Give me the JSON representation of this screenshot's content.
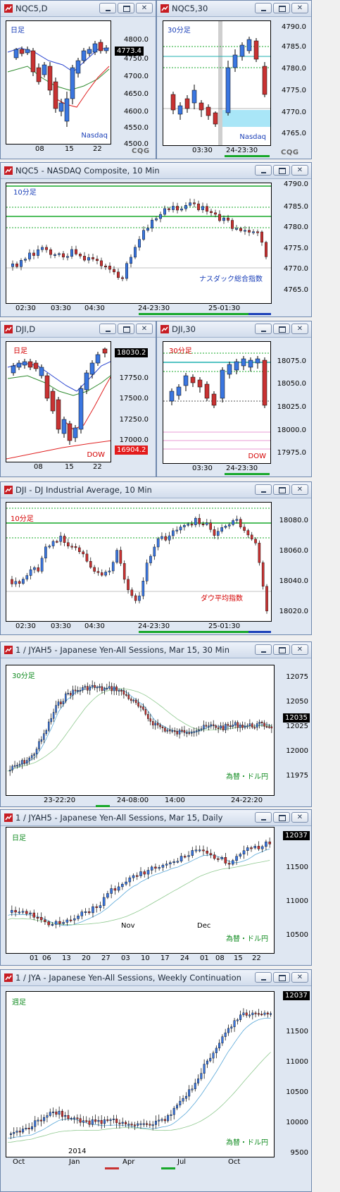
{
  "colors": {
    "up": "#3a76e0",
    "down": "#c83232",
    "green": "#17a82a",
    "ma_blue": "#2a45d0",
    "ma_red": "#e02020",
    "ma_green": "#2e8b2e",
    "cyan": "#1fb0b0"
  },
  "brand": "CQG",
  "windows": [
    {
      "id": "w1",
      "title": "NQC5,D",
      "label": "日足",
      "label_color": "j",
      "sub": "Nasdaq",
      "price_tag": "4773.4",
      "yticks": [
        "4800.0",
        "4750.0",
        "4700.0",
        "4650.0",
        "4600.0",
        "4550.0",
        "4500.0"
      ],
      "xticks": [
        "08",
        "15",
        "22"
      ]
    },
    {
      "id": "w2",
      "title": "NQC5,30",
      "label": "30分足",
      "label_color": "j",
      "sub": "Nasdaq",
      "yticks": [
        "4790.0",
        "4785.0",
        "4780.0",
        "4775.0",
        "4770.0",
        "4765.0"
      ],
      "xticks": [
        "03:30",
        "24-23:30"
      ]
    },
    {
      "id": "w3",
      "title": "NQC5 - NASDAQ Composite, 10 Min",
      "label": "10分足",
      "label_color": "j",
      "sub": "ナスダック総合指数",
      "yticks": [
        "4790.0",
        "4785.0",
        "4780.0",
        "4775.0",
        "4770.0",
        "4765.0"
      ],
      "xticks": [
        "02:30",
        "03:30",
        "04:30",
        "24-23:30",
        "25-01:30"
      ]
    },
    {
      "id": "w4",
      "title": "DJI,D",
      "label": "日足",
      "label_color": "r",
      "sub": "DOW",
      "price_tag": "18030.2",
      "price_tag2": "16904.2",
      "yticks": [
        "17750.0",
        "17500.0",
        "17250.0",
        "17000.0"
      ],
      "xticks": [
        "08",
        "15",
        "22"
      ]
    },
    {
      "id": "w5",
      "title": "DJI,30",
      "label": "30分足",
      "label_color": "r",
      "sub": "DOW",
      "yticks": [
        "18075.0",
        "18050.0",
        "18025.0",
        "18000.0",
        "17975.0"
      ],
      "xticks": [
        "03:30",
        "24-23:30"
      ]
    },
    {
      "id": "w6",
      "title": "DJI - DJ Industrial Average, 10 Min",
      "label": "10分足",
      "label_color": "r",
      "sub": "ダウ平均指数",
      "yticks": [
        "18080.0",
        "18060.0",
        "18040.0",
        "18020.0"
      ],
      "xticks": [
        "02:30",
        "03:30",
        "04:30",
        "24-23:30",
        "25-01:30"
      ]
    },
    {
      "id": "w7",
      "title": "1 / JYAH5 - Japanese Yen-All Sessions, Mar 15, 30 Min",
      "label": "30分足",
      "label_color": "g",
      "sub": "為替・ドル円",
      "price_tag": "12035",
      "yticks": [
        "12075",
        "12050",
        "12025",
        "12000",
        "11975"
      ],
      "xticks": [
        "23-22:20",
        "24-08:00",
        "14:00",
        "24-22:20"
      ]
    },
    {
      "id": "w8",
      "title": "1 / JYAH5 - Japanese Yen-All Sessions, Mar 15, Daily",
      "label": "日足",
      "label_color": "g",
      "sub": "為替・ドル円",
      "price_tag": "12037",
      "yticks": [
        "11500",
        "11000",
        "10500"
      ],
      "xmonths": [
        "Nov",
        "Dec"
      ],
      "xticks": [
        "01",
        "06",
        "13",
        "20",
        "27",
        "03",
        "10",
        "17",
        "24",
        "01",
        "08",
        "15",
        "22"
      ]
    },
    {
      "id": "w9",
      "title": "1 / JYA - Japanese Yen-All Sessions, Weekly Continuation",
      "label": "週足",
      "label_color": "g",
      "sub": "為替・ドル円",
      "price_tag": "12037",
      "yticks": [
        "11500",
        "11000",
        "10500",
        "10000",
        "9500"
      ],
      "xyear": "2014",
      "xticks": [
        "Oct",
        "Jan",
        "Apr",
        "Jul",
        "Oct"
      ]
    }
  ]
}
